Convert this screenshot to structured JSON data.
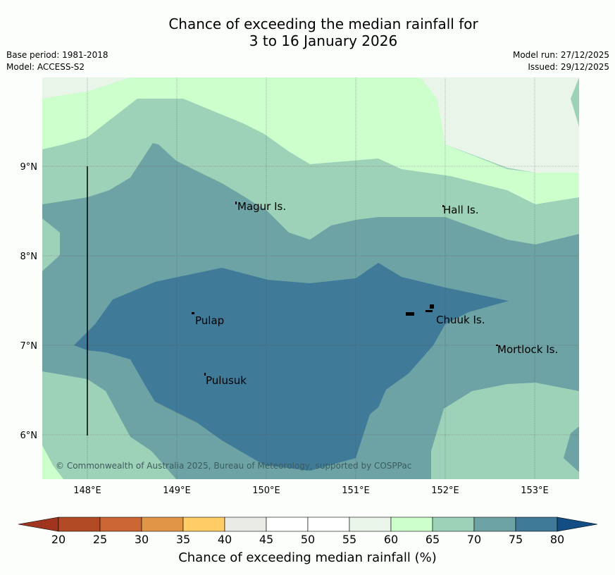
{
  "title_line1": "Chance of exceeding the median rainfall for",
  "title_line2": "3 to 16 January 2026",
  "base_period": "Base period: 1981-2018",
  "model": "Model: ACCESS-S2",
  "model_run": "Model run: 27/12/2025",
  "issued": "Issued: 29/12/2025",
  "map": {
    "lon_ticks": [
      "148°E",
      "149°E",
      "150°E",
      "151°E",
      "152°E",
      "153°E"
    ],
    "lat_ticks": [
      "9°N",
      "8°N",
      "7°N",
      "6°N"
    ],
    "places": [
      "Magur Is.",
      "Hall Is.",
      "Pulap",
      "Chuuk Is.",
      "Mortlock Is.",
      "Pulusuk"
    ],
    "copyright": "© Commonwealth of Australia 2025, Bureau of Meteorology, supported by COSPPac"
  },
  "colorbar": {
    "ticks": [
      "20",
      "25",
      "30",
      "35",
      "40",
      "45",
      "50",
      "55",
      "60",
      "65",
      "70",
      "75",
      "80"
    ],
    "colors": [
      "#a0341f",
      "#b34a26",
      "#cc6633",
      "#e09547",
      "#ffcc66",
      "#ebebe6",
      "#ffffff",
      "#ffffff",
      "#eaf5ea",
      "#ccffcc",
      "#9dd1b8",
      "#6da3a5",
      "#3f7a99",
      "#144c84"
    ],
    "label": "Chance of exceeding median rainfall (%)"
  }
}
